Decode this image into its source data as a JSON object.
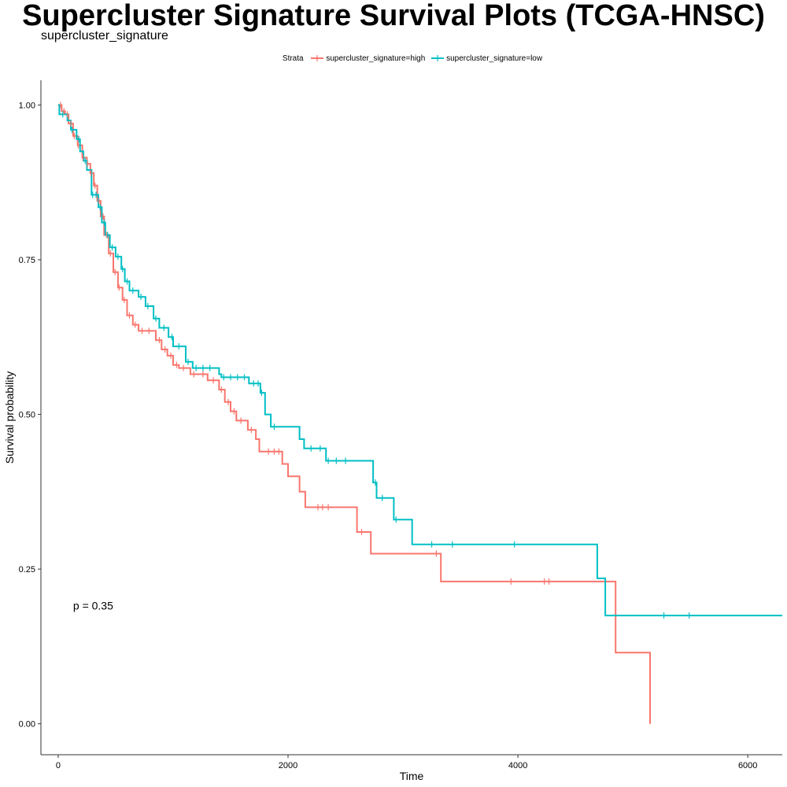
{
  "chart_data": {
    "type": "line",
    "title": "Supercluster Signature Survival Plots (TCGA-HNSC)",
    "subtitle": "supercluster_signature",
    "xlabel": "Time",
    "ylabel": "Survival probability",
    "xlim": [
      -150,
      6300
    ],
    "ylim": [
      -0.05,
      1.04
    ],
    "x_ticks": [
      0,
      2000,
      4000,
      6000
    ],
    "x_tick_labels": [
      "0",
      "2000",
      "4000",
      "6000"
    ],
    "y_ticks": [
      0,
      0.25,
      0.5,
      0.75,
      1.0
    ],
    "y_tick_labels": [
      "0.00",
      "0.25",
      "0.50",
      "0.75",
      "1.00"
    ],
    "grid": false,
    "legend": {
      "title": "Strata",
      "placement": "top",
      "entries": [
        "supercluster_signature=high",
        "supercluster_signature=low"
      ]
    },
    "annotation": "p = 0.35",
    "annotation_pos": [
      130,
      0.19
    ],
    "series": [
      {
        "name": "supercluster_signature=high",
        "color": "#F8766D",
        "points": [
          [
            0,
            1.0
          ],
          [
            30,
            0.99
          ],
          [
            60,
            0.985
          ],
          [
            90,
            0.97
          ],
          [
            130,
            0.95
          ],
          [
            170,
            0.935
          ],
          [
            210,
            0.915
          ],
          [
            250,
            0.905
          ],
          [
            280,
            0.89
          ],
          [
            310,
            0.87
          ],
          [
            340,
            0.845
          ],
          [
            370,
            0.82
          ],
          [
            400,
            0.79
          ],
          [
            440,
            0.76
          ],
          [
            480,
            0.73
          ],
          [
            520,
            0.705
          ],
          [
            560,
            0.685
          ],
          [
            600,
            0.66
          ],
          [
            650,
            0.645
          ],
          [
            700,
            0.635
          ],
          [
            850,
            0.62
          ],
          [
            900,
            0.605
          ],
          [
            950,
            0.595
          ],
          [
            1000,
            0.58
          ],
          [
            1050,
            0.575
          ],
          [
            1150,
            0.565
          ],
          [
            1300,
            0.555
          ],
          [
            1400,
            0.54
          ],
          [
            1450,
            0.52
          ],
          [
            1500,
            0.505
          ],
          [
            1550,
            0.49
          ],
          [
            1650,
            0.475
          ],
          [
            1720,
            0.46
          ],
          [
            1750,
            0.44
          ],
          [
            1950,
            0.42
          ],
          [
            2000,
            0.4
          ],
          [
            2100,
            0.375
          ],
          [
            2150,
            0.35
          ],
          [
            2600,
            0.31
          ],
          [
            2720,
            0.275
          ],
          [
            3330,
            0.23
          ],
          [
            4850,
            0.115
          ],
          [
            5150,
            0.0
          ]
        ],
        "censor_x": [
          20,
          50,
          80,
          110,
          140,
          175,
          215,
          255,
          285,
          320,
          355,
          390,
          420,
          455,
          495,
          530,
          575,
          620,
          670,
          730,
          790,
          880,
          930,
          980,
          1030,
          1090,
          1180,
          1260,
          1350,
          1420,
          1480,
          1530,
          1590,
          1680,
          1830,
          1880,
          1920,
          2260,
          2300,
          2350,
          2640,
          3290,
          3940,
          4230,
          4270
        ]
      },
      {
        "name": "supercluster_signature=low",
        "color": "#00BFC4",
        "points": [
          [
            0,
            1.0
          ],
          [
            10,
            0.985
          ],
          [
            80,
            0.975
          ],
          [
            110,
            0.96
          ],
          [
            160,
            0.945
          ],
          [
            190,
            0.925
          ],
          [
            220,
            0.91
          ],
          [
            250,
            0.895
          ],
          [
            290,
            0.855
          ],
          [
            350,
            0.835
          ],
          [
            380,
            0.81
          ],
          [
            410,
            0.79
          ],
          [
            450,
            0.77
          ],
          [
            500,
            0.755
          ],
          [
            550,
            0.735
          ],
          [
            580,
            0.715
          ],
          [
            620,
            0.7
          ],
          [
            700,
            0.69
          ],
          [
            760,
            0.675
          ],
          [
            830,
            0.655
          ],
          [
            880,
            0.64
          ],
          [
            960,
            0.625
          ],
          [
            1000,
            0.61
          ],
          [
            1110,
            0.585
          ],
          [
            1170,
            0.575
          ],
          [
            1400,
            0.565
          ],
          [
            1420,
            0.56
          ],
          [
            1660,
            0.55
          ],
          [
            1760,
            0.535
          ],
          [
            1800,
            0.5
          ],
          [
            1850,
            0.48
          ],
          [
            2100,
            0.46
          ],
          [
            2140,
            0.445
          ],
          [
            2330,
            0.425
          ],
          [
            2740,
            0.39
          ],
          [
            2770,
            0.365
          ],
          [
            2920,
            0.33
          ],
          [
            3080,
            0.29
          ],
          [
            4690,
            0.235
          ],
          [
            4760,
            0.175
          ],
          [
            6300,
            0.175
          ]
        ],
        "censor_x": [
          40,
          120,
          180,
          235,
          300,
          330,
          365,
          400,
          430,
          470,
          520,
          560,
          600,
          650,
          720,
          780,
          850,
          920,
          990,
          1050,
          1130,
          1200,
          1260,
          1320,
          1440,
          1500,
          1560,
          1620,
          1700,
          1740,
          1770,
          1880,
          2200,
          2280,
          2350,
          2420,
          2500,
          2760,
          2820,
          2940,
          3250,
          3430,
          3970,
          5270,
          5490
        ]
      }
    ]
  }
}
